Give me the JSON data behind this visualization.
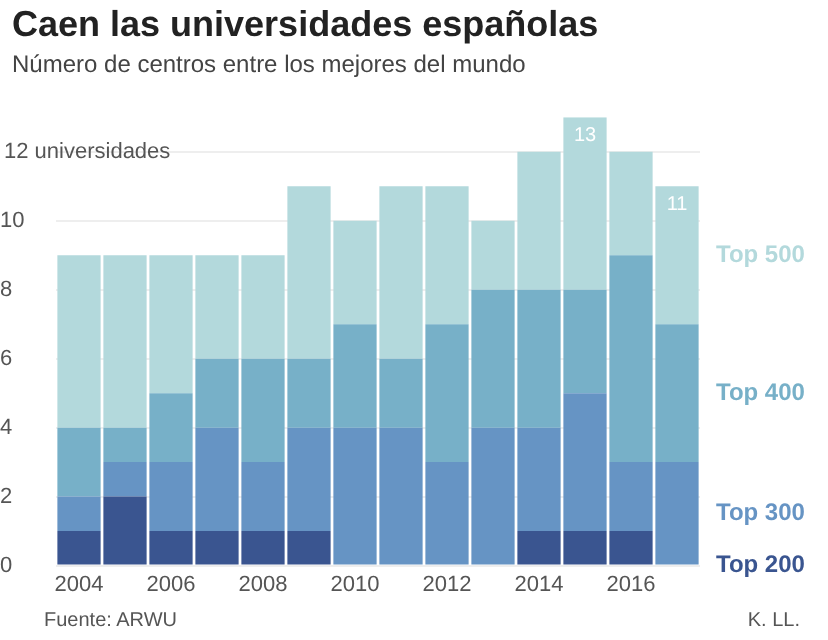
{
  "chart_data": {
    "type": "bar",
    "title": "Caen las universidades españolas",
    "subtitle": "Número de centros entre los mejores del mundo",
    "categories": [
      "2004",
      null,
      "2006",
      null,
      "2008",
      null,
      "2010",
      null,
      "2012",
      null,
      "2014",
      null,
      "2016",
      null
    ],
    "stacked": true,
    "series": [
      {
        "name": "Top 200",
        "color": "#3a5590",
        "values": [
          1,
          2,
          1,
          1,
          1,
          1,
          0,
          0,
          0,
          0,
          1,
          1,
          1,
          0
        ]
      },
      {
        "name": "Top 300",
        "color": "#6694c4",
        "values": [
          1,
          1,
          2,
          3,
          2,
          3,
          4,
          4,
          3,
          4,
          3,
          4,
          2,
          3
        ]
      },
      {
        "name": "Top 400",
        "color": "#77b0c8",
        "values": [
          2,
          1,
          2,
          2,
          3,
          2,
          3,
          2,
          4,
          4,
          4,
          3,
          6,
          4
        ]
      },
      {
        "name": "Top 500",
        "color": "#b3d9dc",
        "values": [
          5,
          5,
          4,
          3,
          3,
          5,
          3,
          5,
          4,
          2,
          4,
          5,
          3,
          4
        ]
      }
    ],
    "totals": [
      null,
      null,
      null,
      null,
      null,
      null,
      null,
      null,
      null,
      null,
      null,
      "13",
      null,
      "11"
    ],
    "ylim": [
      0,
      13
    ],
    "yticks": [
      0,
      2,
      4,
      6,
      8,
      10,
      {
        "value": 12,
        "label": "12 universidades"
      }
    ],
    "grid": "y",
    "legend": false,
    "annotations": [
      "Fuente: ARWU",
      "K. LL."
    ]
  }
}
